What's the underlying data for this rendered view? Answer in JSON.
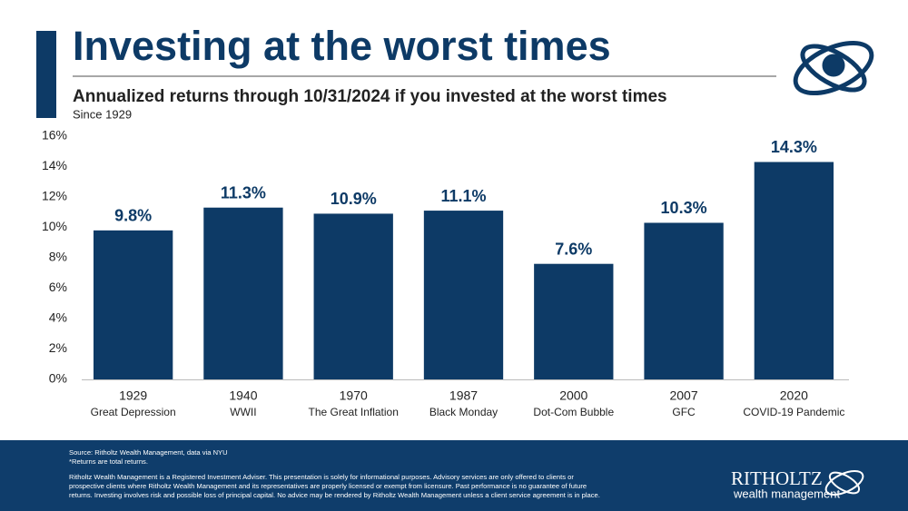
{
  "header": {
    "title": "Investing at the worst times",
    "subtitle": "Annualized returns through 10/31/2024 if you invested at the worst times",
    "note": "Since 1929"
  },
  "chart_data": {
    "type": "bar",
    "categories": [
      "1929",
      "1940",
      "1970",
      "1987",
      "2000",
      "2007",
      "2020"
    ],
    "category_descriptions": [
      "Great Depression",
      "WWII",
      "The Great Inflation",
      "Black Monday",
      "Dot-Com Bubble",
      "GFC",
      "COVID-19 Pandemic"
    ],
    "values": [
      9.8,
      11.3,
      10.9,
      11.1,
      7.6,
      10.3,
      14.3
    ],
    "value_labels": [
      "9.8%",
      "11.3%",
      "10.9%",
      "11.1%",
      "7.6%",
      "10.3%",
      "14.3%"
    ],
    "color": "#0d3a66",
    "ylim": [
      0,
      16
    ],
    "yticks": [
      {
        "value": 0,
        "label": "0%"
      },
      {
        "value": 2,
        "label": "2%"
      },
      {
        "value": 4,
        "label": "4%"
      },
      {
        "value": 6,
        "label": "6%"
      },
      {
        "value": 8,
        "label": "8%"
      },
      {
        "value": 10,
        "label": "10%"
      },
      {
        "value": 12,
        "label": "12%"
      },
      {
        "value": 14,
        "label": "14%"
      },
      {
        "value": 16,
        "label": "16%"
      }
    ],
    "grid": false
  },
  "footer": {
    "source": "Source: Ritholtz Wealth Management, data via NYU",
    "footnote": "*Returns are total returns.",
    "disclaimer": [
      "Ritholtz Wealth Management is a Registered Investment Adviser. This presentation is solely for informational purposes. Advisory services are only offered to clients or",
      "prospective clients where Ritholtz Wealth Management and its representatives are properly licensed or exempt from licensure. Past performance is no guarantee of future",
      "returns. Investing involves risk and possible loss of principal capital. No advice may be rendered by Ritholtz Wealth Management unless a client service agreement is in place."
    ],
    "logo_name": "RITHOLTZ",
    "logo_tagline": "wealth management"
  }
}
